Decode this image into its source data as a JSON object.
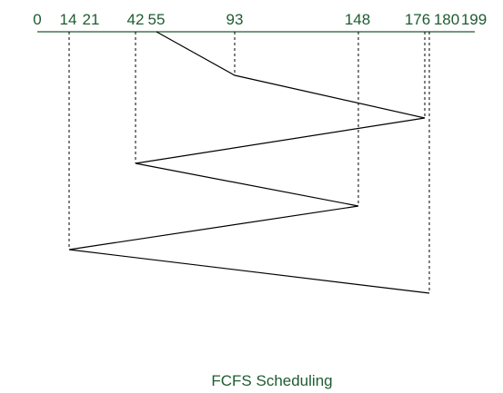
{
  "chart_data": {
    "type": "line",
    "axis": {
      "min": 0,
      "max": 199,
      "labeled_ticks": [
        0,
        14,
        21,
        42,
        55,
        93,
        148,
        176,
        180,
        199
      ],
      "ticks_with_guides": [
        14,
        21,
        42,
        93,
        148,
        176,
        180
      ]
    },
    "head_sequence": [
      55,
      93,
      176,
      42,
      148,
      14,
      180
    ],
    "caption": "FCFS Scheduling"
  },
  "colors": {
    "label": "#1e5c30",
    "axis": "#1e5c30",
    "line": "#000000"
  }
}
